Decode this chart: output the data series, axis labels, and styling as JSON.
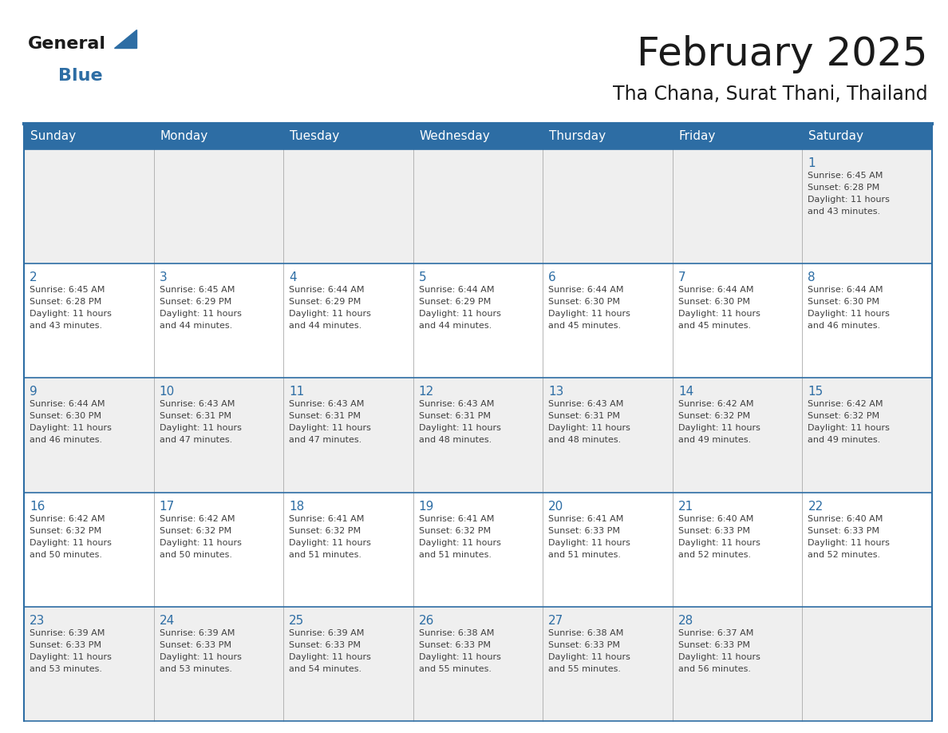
{
  "title": "February 2025",
  "subtitle": "Tha Chana, Surat Thani, Thailand",
  "header_color": "#2D6DA4",
  "header_text_color": "#FFFFFF",
  "bg_color": "#FFFFFF",
  "row_bg_colors": [
    "#EFEFEF",
    "#FFFFFF",
    "#EFEFEF",
    "#FFFFFF",
    "#EFEFEF"
  ],
  "day_names": [
    "Sunday",
    "Monday",
    "Tuesday",
    "Wednesday",
    "Thursday",
    "Friday",
    "Saturday"
  ],
  "day_number_color": "#2D6DA4",
  "text_color": "#404040",
  "line_color": "#2D6DA4",
  "days": [
    {
      "day": 1,
      "col": 6,
      "row": 0,
      "sunrise": "6:45 AM",
      "sunset": "6:28 PM",
      "daylight_h": "11 hours",
      "daylight_m": "43 minutes."
    },
    {
      "day": 2,
      "col": 0,
      "row": 1,
      "sunrise": "6:45 AM",
      "sunset": "6:28 PM",
      "daylight_h": "11 hours",
      "daylight_m": "43 minutes."
    },
    {
      "day": 3,
      "col": 1,
      "row": 1,
      "sunrise": "6:45 AM",
      "sunset": "6:29 PM",
      "daylight_h": "11 hours",
      "daylight_m": "44 minutes."
    },
    {
      "day": 4,
      "col": 2,
      "row": 1,
      "sunrise": "6:44 AM",
      "sunset": "6:29 PM",
      "daylight_h": "11 hours",
      "daylight_m": "44 minutes."
    },
    {
      "day": 5,
      "col": 3,
      "row": 1,
      "sunrise": "6:44 AM",
      "sunset": "6:29 PM",
      "daylight_h": "11 hours",
      "daylight_m": "44 minutes."
    },
    {
      "day": 6,
      "col": 4,
      "row": 1,
      "sunrise": "6:44 AM",
      "sunset": "6:30 PM",
      "daylight_h": "11 hours",
      "daylight_m": "45 minutes."
    },
    {
      "day": 7,
      "col": 5,
      "row": 1,
      "sunrise": "6:44 AM",
      "sunset": "6:30 PM",
      "daylight_h": "11 hours",
      "daylight_m": "45 minutes."
    },
    {
      "day": 8,
      "col": 6,
      "row": 1,
      "sunrise": "6:44 AM",
      "sunset": "6:30 PM",
      "daylight_h": "11 hours",
      "daylight_m": "46 minutes."
    },
    {
      "day": 9,
      "col": 0,
      "row": 2,
      "sunrise": "6:44 AM",
      "sunset": "6:30 PM",
      "daylight_h": "11 hours",
      "daylight_m": "46 minutes."
    },
    {
      "day": 10,
      "col": 1,
      "row": 2,
      "sunrise": "6:43 AM",
      "sunset": "6:31 PM",
      "daylight_h": "11 hours",
      "daylight_m": "47 minutes."
    },
    {
      "day": 11,
      "col": 2,
      "row": 2,
      "sunrise": "6:43 AM",
      "sunset": "6:31 PM",
      "daylight_h": "11 hours",
      "daylight_m": "47 minutes."
    },
    {
      "day": 12,
      "col": 3,
      "row": 2,
      "sunrise": "6:43 AM",
      "sunset": "6:31 PM",
      "daylight_h": "11 hours",
      "daylight_m": "48 minutes."
    },
    {
      "day": 13,
      "col": 4,
      "row": 2,
      "sunrise": "6:43 AM",
      "sunset": "6:31 PM",
      "daylight_h": "11 hours",
      "daylight_m": "48 minutes."
    },
    {
      "day": 14,
      "col": 5,
      "row": 2,
      "sunrise": "6:42 AM",
      "sunset": "6:32 PM",
      "daylight_h": "11 hours",
      "daylight_m": "49 minutes."
    },
    {
      "day": 15,
      "col": 6,
      "row": 2,
      "sunrise": "6:42 AM",
      "sunset": "6:32 PM",
      "daylight_h": "11 hours",
      "daylight_m": "49 minutes."
    },
    {
      "day": 16,
      "col": 0,
      "row": 3,
      "sunrise": "6:42 AM",
      "sunset": "6:32 PM",
      "daylight_h": "11 hours",
      "daylight_m": "50 minutes."
    },
    {
      "day": 17,
      "col": 1,
      "row": 3,
      "sunrise": "6:42 AM",
      "sunset": "6:32 PM",
      "daylight_h": "11 hours",
      "daylight_m": "50 minutes."
    },
    {
      "day": 18,
      "col": 2,
      "row": 3,
      "sunrise": "6:41 AM",
      "sunset": "6:32 PM",
      "daylight_h": "11 hours",
      "daylight_m": "51 minutes."
    },
    {
      "day": 19,
      "col": 3,
      "row": 3,
      "sunrise": "6:41 AM",
      "sunset": "6:32 PM",
      "daylight_h": "11 hours",
      "daylight_m": "51 minutes."
    },
    {
      "day": 20,
      "col": 4,
      "row": 3,
      "sunrise": "6:41 AM",
      "sunset": "6:33 PM",
      "daylight_h": "11 hours",
      "daylight_m": "51 minutes."
    },
    {
      "day": 21,
      "col": 5,
      "row": 3,
      "sunrise": "6:40 AM",
      "sunset": "6:33 PM",
      "daylight_h": "11 hours",
      "daylight_m": "52 minutes."
    },
    {
      "day": 22,
      "col": 6,
      "row": 3,
      "sunrise": "6:40 AM",
      "sunset": "6:33 PM",
      "daylight_h": "11 hours",
      "daylight_m": "52 minutes."
    },
    {
      "day": 23,
      "col": 0,
      "row": 4,
      "sunrise": "6:39 AM",
      "sunset": "6:33 PM",
      "daylight_h": "11 hours",
      "daylight_m": "53 minutes."
    },
    {
      "day": 24,
      "col": 1,
      "row": 4,
      "sunrise": "6:39 AM",
      "sunset": "6:33 PM",
      "daylight_h": "11 hours",
      "daylight_m": "53 minutes."
    },
    {
      "day": 25,
      "col": 2,
      "row": 4,
      "sunrise": "6:39 AM",
      "sunset": "6:33 PM",
      "daylight_h": "11 hours",
      "daylight_m": "54 minutes."
    },
    {
      "day": 26,
      "col": 3,
      "row": 4,
      "sunrise": "6:38 AM",
      "sunset": "6:33 PM",
      "daylight_h": "11 hours",
      "daylight_m": "55 minutes."
    },
    {
      "day": 27,
      "col": 4,
      "row": 4,
      "sunrise": "6:38 AM",
      "sunset": "6:33 PM",
      "daylight_h": "11 hours",
      "daylight_m": "55 minutes."
    },
    {
      "day": 28,
      "col": 5,
      "row": 4,
      "sunrise": "6:37 AM",
      "sunset": "6:33 PM",
      "daylight_h": "11 hours",
      "daylight_m": "56 minutes."
    }
  ]
}
